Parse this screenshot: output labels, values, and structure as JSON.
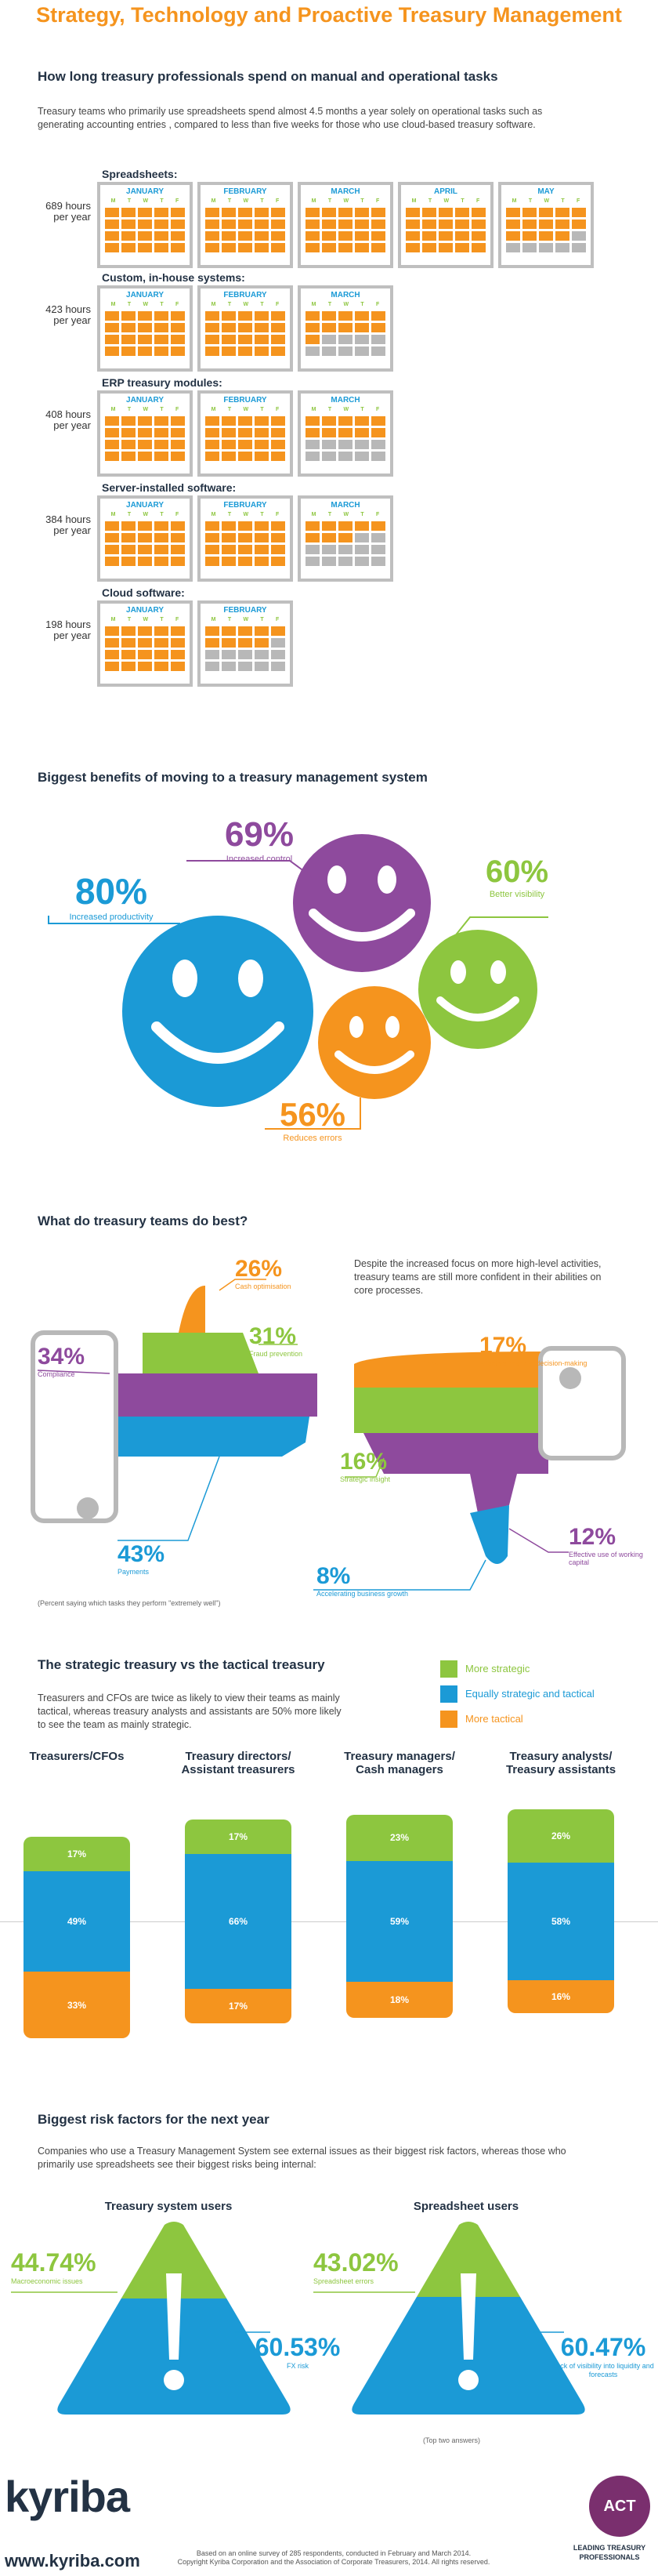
{
  "title": "Strategy, Technology and Proactive Treasury Management",
  "sec1": {
    "heading": "How long treasury professionals spend on manual and operational tasks",
    "text": "Treasury teams who primarily use spreadsheets spend almost  4.5 months a year solely on operational tasks such as generating accounting entries , compared to less than five weeks for those who use cloud-based treasury software.",
    "days": [
      "M",
      "T",
      "W",
      "T",
      "F"
    ],
    "groups": [
      {
        "name": "Spreadsheets:",
        "hours": "689 hours",
        "per": "per year",
        "months": [
          "JANUARY",
          "FEBRUARY",
          "MARCH",
          "APRIL",
          "MAY"
        ],
        "grey": [
          0,
          0,
          0,
          0,
          6
        ]
      },
      {
        "name": "Custom, in-house systems:",
        "hours": "423 hours",
        "per": "per year",
        "months": [
          "JANUARY",
          "FEBRUARY",
          "MARCH"
        ],
        "grey": [
          0,
          0,
          9
        ]
      },
      {
        "name": "ERP treasury modules:",
        "hours": "408 hours",
        "per": "per year",
        "months": [
          "JANUARY",
          "FEBRUARY",
          "MARCH"
        ],
        "grey": [
          0,
          0,
          10
        ]
      },
      {
        "name": "Server-installed software:",
        "hours": "384 hours",
        "per": "per year",
        "months": [
          "JANUARY",
          "FEBRUARY",
          "MARCH"
        ],
        "grey": [
          0,
          0,
          12
        ]
      },
      {
        "name": "Cloud software:",
        "hours": "198 hours",
        "per": "per year",
        "months": [
          "JANUARY",
          "FEBRUARY"
        ],
        "grey": [
          0,
          11
        ]
      }
    ]
  },
  "sec2": {
    "heading": "Biggest benefits of moving to a treasury management system",
    "items": [
      {
        "pct": "69%",
        "label": "Increased control",
        "color": "#8e4a9d"
      },
      {
        "pct": "60%",
        "label": "Better visibility",
        "color": "#8dc63f"
      },
      {
        "pct": "80%",
        "label": "Increased productivity",
        "color": "#1b9ad6"
      },
      {
        "pct": "56%",
        "label": "Reduces errors",
        "color": "#f5941e"
      }
    ]
  },
  "sec3": {
    "heading": "What do treasury teams do best?",
    "text": "Despite the increased focus on more high-level activities, treasury teams are still more confident in their abilities on core processes.",
    "up": [
      {
        "pct": "26%",
        "label": "Cash optimisation"
      },
      {
        "pct": "31%",
        "label": "Fraud prevention"
      },
      {
        "pct": "34%",
        "label": "Compliance"
      },
      {
        "pct": "43%",
        "label": "Payments"
      }
    ],
    "down": [
      {
        "pct": "17%",
        "label": "Effective financial decision-making"
      },
      {
        "pct": "16%",
        "label": "Strategic insight"
      },
      {
        "pct": "12%",
        "label": "Effective use of working capital"
      },
      {
        "pct": "8%",
        "label": "Accelerating business growth"
      }
    ],
    "note": "(Percent saying which tasks they perform \"extremely well\")"
  },
  "sec4": {
    "heading": "The strategic treasury vs the tactical treasury",
    "text": "Treasurers and CFOs are twice as likely to view their teams as mainly tactical, whereas treasury analysts and assistants are 50% more likely to see the team as mainly strategic.",
    "legend": [
      {
        "label": "More strategic",
        "color": "#8dc63f"
      },
      {
        "label": "Equally strategic and tactical",
        "color": "#1b9ad6"
      },
      {
        "label": "More tactical",
        "color": "#f5941e"
      }
    ],
    "chart_data": {
      "type": "bar",
      "categories": [
        "Treasurers/CFOs",
        "Treasury directors/ Assistant treasurers",
        "Treasury managers/ Cash managers",
        "Treasury analysts/ Treasury assistants"
      ],
      "series": [
        {
          "name": "More strategic",
          "values": [
            17,
            17,
            23,
            26
          ]
        },
        {
          "name": "Equally strategic and tactical",
          "values": [
            49,
            66,
            59,
            58
          ]
        },
        {
          "name": "More tactical",
          "values": [
            33,
            17,
            18,
            16
          ]
        }
      ]
    }
  },
  "sec5": {
    "heading": "Biggest risk factors for the next year",
    "text": "Companies who use a Treasury Management System see external issues as their biggest risk factors, whereas those who primarily use spreadsheets see their biggest risks being internal:",
    "left": {
      "title": "Treasury system users",
      "top_pct": "44.74%",
      "top_label": "Macroeconomic issues",
      "bot_pct": "60.53%",
      "bot_label": "FX risk"
    },
    "right": {
      "title": "Spreadsheet users",
      "top_pct": "43.02%",
      "top_label": "Spreadsheet errors",
      "bot_pct": "60.47%",
      "bot_label": "Lack of visibility into liquidity and forecasts"
    },
    "note": "(Top two answers)"
  },
  "footer": {
    "logo": "kyriba",
    "url": "www.kyriba.com",
    "line1": "Based on an online survey of 285 respondents, conducted in February and March 2014.",
    "line2": "Copyright Kyriba Corporation and the Association of Corporate Treasurers, 2014. All rights reserved.",
    "act": "ACT",
    "act_tag1": "LEADING TREASURY",
    "act_tag2": "PROFESSIONALS"
  }
}
